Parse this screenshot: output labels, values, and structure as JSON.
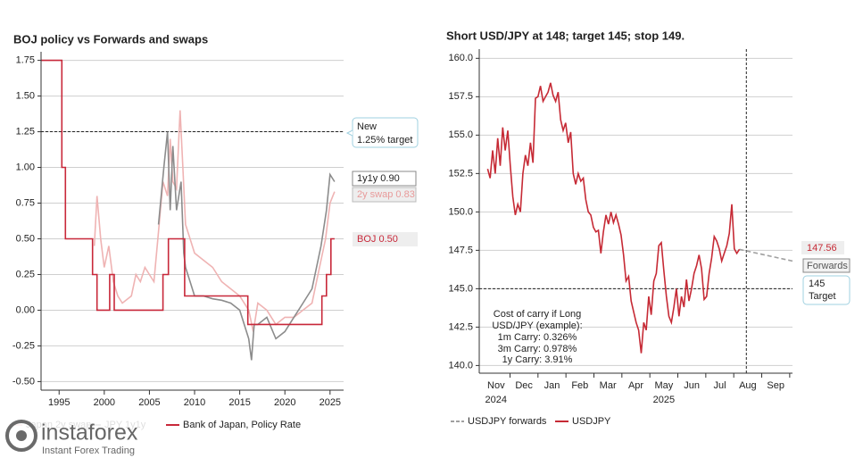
{
  "chart_data": [
    {
      "type": "line",
      "title": "BOJ policy vs Forwards and swaps",
      "xlim": [
        1993,
        2026.5
      ],
      "xticks": [
        1995,
        2000,
        2005,
        2010,
        2015,
        2020,
        2025
      ],
      "ylim": [
        -0.56,
        1.81
      ],
      "yticks": [
        1.75,
        {
          "value": 1.5,
          "label": "1.50"
        },
        1.25,
        {
          "value": 1,
          "label": "1.00"
        },
        0.75,
        {
          "value": 0.5,
          "label": "0.50"
        },
        0.25,
        {
          "value": 0,
          "label": "0.00"
        },
        -0.25,
        {
          "value": -0.5,
          "label": "-0.50"
        }
      ],
      "grid": true,
      "hline": 1.25,
      "series": [
        {
          "name": "Japan 2y swap",
          "color": "#efb3b3",
          "x": [
            1998.9,
            1999.2,
            1999.6,
            2000.0,
            2000.5,
            2001.0,
            2001.5,
            2002,
            2003,
            2003.5,
            2004,
            2004.5,
            2005,
            2005.5,
            2006,
            2006.5,
            2007,
            2007.3,
            2007.6,
            2008,
            2008.4,
            2008.7,
            2009,
            2009.5,
            2010,
            2011,
            2012,
            2013,
            2014,
            2015,
            2016,
            2016.5,
            2017,
            2018,
            2019,
            2020,
            2021,
            2022,
            2023,
            2024,
            2024.5,
            2025,
            2025.5
          ],
          "values": [
            0.45,
            0.8,
            0.5,
            0.3,
            0.45,
            0.2,
            0.1,
            0.05,
            0.1,
            0.25,
            0.2,
            0.3,
            0.25,
            0.2,
            0.55,
            0.9,
            0.8,
            1.2,
            0.9,
            0.85,
            1.4,
            1.0,
            0.6,
            0.5,
            0.4,
            0.35,
            0.3,
            0.2,
            0.15,
            0.1,
            0.0,
            -0.15,
            0.05,
            0.0,
            -0.1,
            -0.05,
            -0.05,
            0.0,
            0.05,
            0.35,
            0.5,
            0.75,
            0.83
          ]
        },
        {
          "name": "JPY 1y1y",
          "color": "#8c8c8c",
          "x": [
            2006,
            2006.6,
            2007,
            2007.3,
            2007.6,
            2008,
            2008.5,
            2008.8,
            2009,
            2009.5,
            2010,
            2011,
            2012,
            2013,
            2014,
            2015,
            2016,
            2016.3,
            2016.6,
            2017,
            2018,
            2019,
            2020,
            2021,
            2022,
            2023,
            2024,
            2024.6,
            2025,
            2025.5
          ],
          "values": [
            0.6,
            1.0,
            1.25,
            0.7,
            1.15,
            0.7,
            0.9,
            0.4,
            0.3,
            0.2,
            0.1,
            0.1,
            0.08,
            0.07,
            0.05,
            0.0,
            -0.2,
            -0.35,
            -0.1,
            -0.1,
            -0.05,
            -0.2,
            -0.15,
            -0.05,
            0.05,
            0.15,
            0.45,
            0.7,
            0.95,
            0.9
          ]
        },
        {
          "name": "Bank of Japan, Policy Rate",
          "color": "#c8283a",
          "x": [
            1993.05,
            1995.3,
            1995.3,
            1995.7,
            1995.7,
            1998.7,
            1998.7,
            1999.2,
            1999.2,
            2000.6,
            2000.6,
            2001.1,
            2001.1,
            2006.5,
            2006.5,
            2007.1,
            2007.1,
            2008.9,
            2008.9,
            2015.9,
            2015.9,
            2024.1,
            2024.1,
            2024.6,
            2024.6,
            2025.1,
            2025.1,
            2025.5
          ],
          "values": [
            1.75,
            1.75,
            1.0,
            1.0,
            0.5,
            0.5,
            0.25,
            0.25,
            0,
            0,
            0.25,
            0.25,
            0,
            0,
            0.25,
            0.25,
            0.5,
            0.5,
            0.1,
            0.1,
            -0.1,
            -0.1,
            0.1,
            0.1,
            0.25,
            0.25,
            0.5,
            0.5
          ]
        }
      ],
      "annotations": {
        "new_target": [
          "New",
          "1.25% target"
        ],
        "y1y1": "1y1y 0.90",
        "swap": "2y swap 0.83",
        "boj": "BOJ 0.50"
      }
    },
    {
      "type": "line",
      "title": "Short USD/JPY at 148; target 145; stop 149.",
      "xlim": [
        -0.1,
        11.1
      ],
      "xticks": [
        {
          "value": 0.5,
          "label": "Nov"
        },
        {
          "value": 1.5,
          "label": "Dec"
        },
        {
          "value": 2.5,
          "label": "Jan"
        },
        {
          "value": 3.5,
          "label": "Feb"
        },
        {
          "value": 4.5,
          "label": "Mar"
        },
        {
          "value": 5.5,
          "label": "Apr"
        },
        {
          "value": 6.5,
          "label": "May"
        },
        {
          "value": 7.5,
          "label": "Jun"
        },
        {
          "value": 8.5,
          "label": "Jul"
        },
        {
          "value": 9.5,
          "label": "Aug"
        },
        {
          "value": 10.5,
          "label": "Sep"
        }
      ],
      "year_labels": [
        {
          "value": 0.5,
          "label": "2024"
        },
        {
          "value": 6.5,
          "label": "2025"
        }
      ],
      "ylim": [
        139.5,
        160.6
      ],
      "yticks": [
        {
          "value": 160,
          "label": "160.0"
        },
        157.5,
        {
          "value": 155,
          "label": "155.0"
        },
        152.5,
        {
          "value": 150,
          "label": "150.0"
        },
        147.5,
        {
          "value": 145,
          "label": "145.0"
        },
        142.5,
        {
          "value": 140,
          "label": "140.0"
        }
      ],
      "grid": true,
      "hline": 145,
      "vline": 9.45,
      "series": [
        {
          "name": "USDJPY forwards",
          "color": "#a0a0a0",
          "dash": true,
          "x": [
            9.2,
            11.1
          ],
          "values": [
            147.56,
            146.8
          ]
        },
        {
          "name": "USDJPY",
          "color": "#c62a35",
          "x": [
            0.2,
            0.29,
            0.38,
            0.47,
            0.56,
            0.65,
            0.74,
            0.83,
            0.92,
            1.01,
            1.1,
            1.19,
            1.28,
            1.37,
            1.46,
            1.55,
            1.64,
            1.73,
            1.82,
            1.91,
            2.0,
            2.09,
            2.18,
            2.27,
            2.36,
            2.45,
            2.54,
            2.63,
            2.72,
            2.81,
            2.9,
            2.99,
            3.08,
            3.17,
            3.26,
            3.35,
            3.44,
            3.53,
            3.62,
            3.71,
            3.8,
            3.89,
            3.98,
            4.07,
            4.16,
            4.25,
            4.34,
            4.43,
            4.52,
            4.61,
            4.7,
            4.79,
            4.88,
            4.97,
            5.06,
            5.15,
            5.24,
            5.33,
            5.42,
            5.51,
            5.6,
            5.69,
            5.78,
            5.87,
            5.96,
            6.05,
            6.14,
            6.23,
            6.32,
            6.41,
            6.5,
            6.59,
            6.68,
            6.77,
            6.86,
            6.95,
            7.04,
            7.13,
            7.22,
            7.31,
            7.4,
            7.49,
            7.58,
            7.67,
            7.76,
            7.85,
            7.94,
            8.03,
            8.12,
            8.21,
            8.3,
            8.39,
            8.48,
            8.57,
            8.66,
            8.75,
            8.84,
            8.93,
            9.02,
            9.11,
            9.2
          ],
          "values": [
            152.8,
            152.2,
            154,
            152.5,
            154.8,
            153.0,
            155.5,
            154,
            155.3,
            153,
            151,
            149.8,
            150.5,
            150,
            152.5,
            153.7,
            153,
            154.5,
            153.2,
            157.4,
            157.5,
            158.2,
            157.2,
            157.5,
            157.8,
            158.4,
            157.6,
            157.2,
            157.8,
            156,
            155.3,
            155.8,
            154.5,
            155.2,
            152.5,
            151.8,
            152.5,
            152,
            152.2,
            150.8,
            150,
            149.8,
            149,
            148.7,
            148.8,
            147.3,
            148.7,
            149.8,
            149.2,
            150,
            149.3,
            149.8,
            149.2,
            148.5,
            147.2,
            145.5,
            145.8,
            144.2,
            143.5,
            142.8,
            142.3,
            140.8,
            142.8,
            142.3,
            144.5,
            143.3,
            145.5,
            146,
            147.8,
            148,
            146.2,
            144.5,
            143.2,
            142.8,
            143.8,
            145,
            143.2,
            144.5,
            143.8,
            145.6,
            144.2,
            145,
            146,
            146.5,
            147.2,
            146.3,
            144.3,
            144.5,
            146,
            147,
            148.4,
            148.1,
            147.6,
            146.8,
            147.3,
            147.8,
            148.6,
            150.5,
            147.6,
            147.3,
            147.56
          ]
        }
      ],
      "annotations": {
        "last": "147.56",
        "forwards": "Forwards",
        "target": [
          "145",
          "Target"
        ],
        "carry": [
          "Cost of carry if Long",
          "USD/JPY (example):",
          "1m Carry: 0.326%",
          "3m Carry: 0.978%",
          "1y Carry: 3.91%"
        ]
      }
    }
  ],
  "watermark": {
    "brand": "instaforex",
    "tagline": "Instant Forex Trading"
  }
}
